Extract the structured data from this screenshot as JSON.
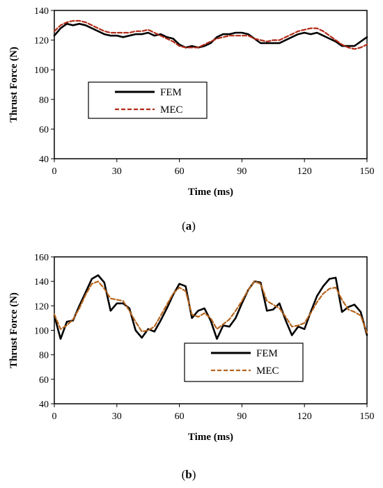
{
  "chart_data": [
    {
      "type": "line",
      "panel_label": "a",
      "xlabel": "Time (ms)",
      "ylabel": "Thrust Force  (N)",
      "xlim": [
        0,
        150
      ],
      "ylim": [
        40,
        140
      ],
      "xticks": [
        "0",
        "30",
        "60",
        "90",
        "120",
        "150"
      ],
      "yticks": [
        "40",
        "60",
        "80",
        "100",
        "120",
        "140"
      ],
      "legend_position": "center-left",
      "series": [
        {
          "name": "FEM",
          "color": "#000000",
          "style": "solid",
          "x": [
            0,
            3,
            6,
            9,
            12,
            15,
            18,
            21,
            24,
            27,
            30,
            33,
            36,
            39,
            42,
            45,
            48,
            51,
            54,
            57,
            60,
            63,
            66,
            69,
            72,
            75,
            78,
            81,
            84,
            87,
            90,
            93,
            96,
            99,
            102,
            105,
            108,
            111,
            114,
            117,
            120,
            123,
            126,
            129,
            132,
            135,
            138,
            141,
            144,
            147,
            150
          ],
          "values": [
            123,
            128,
            131,
            130,
            131,
            130,
            128,
            126,
            124,
            123,
            123,
            122,
            123,
            124,
            124,
            125,
            123,
            124,
            122,
            121,
            117,
            115,
            116,
            115,
            116,
            118,
            122,
            124,
            124,
            125,
            125,
            124,
            121,
            118,
            118,
            118,
            118,
            120,
            122,
            124,
            125,
            124,
            125,
            123,
            121,
            119,
            116,
            116,
            116,
            119,
            122
          ]
        },
        {
          "name": "MEC",
          "color": "#b22a17",
          "style": "dashed",
          "x": [
            0,
            3,
            6,
            9,
            12,
            15,
            18,
            21,
            24,
            27,
            30,
            33,
            36,
            39,
            42,
            45,
            48,
            51,
            54,
            57,
            60,
            63,
            66,
            69,
            72,
            75,
            78,
            81,
            84,
            87,
            90,
            93,
            96,
            99,
            102,
            105,
            108,
            111,
            114,
            117,
            120,
            123,
            126,
            129,
            132,
            135,
            138,
            141,
            144,
            147,
            150
          ],
          "values": [
            126,
            130,
            132,
            133,
            133,
            132,
            130,
            128,
            126,
            125,
            125,
            125,
            125,
            126,
            126,
            127,
            125,
            123,
            121,
            119,
            116,
            115,
            115,
            115,
            117,
            119,
            121,
            122,
            123,
            123,
            123,
            123,
            121,
            120,
            119,
            120,
            120,
            122,
            124,
            126,
            127,
            128,
            128,
            126,
            123,
            120,
            117,
            115,
            114,
            115,
            117
          ]
        }
      ]
    },
    {
      "type": "line",
      "panel_label": "b",
      "xlabel": "Time (ms)",
      "ylabel": "Thrust Force  (N)",
      "xlim": [
        0,
        150
      ],
      "ylim": [
        40,
        160
      ],
      "xticks": [
        "0",
        "30",
        "60",
        "90",
        "120",
        "150"
      ],
      "yticks": [
        "40",
        "60",
        "80",
        "100",
        "120",
        "140",
        "160"
      ],
      "legend_position": "bottom-right",
      "series": [
        {
          "name": "FEM",
          "color": "#000000",
          "style": "solid",
          "x": [
            0,
            3,
            6,
            9,
            12,
            15,
            18,
            21,
            24,
            27,
            30,
            33,
            36,
            39,
            42,
            45,
            48,
            51,
            54,
            57,
            60,
            63,
            66,
            69,
            72,
            75,
            78,
            81,
            84,
            87,
            90,
            93,
            96,
            99,
            102,
            105,
            108,
            111,
            114,
            117,
            120,
            123,
            126,
            129,
            132,
            135,
            138,
            141,
            144,
            147,
            150
          ],
          "values": [
            112,
            93,
            107,
            108,
            120,
            131,
            142,
            145,
            139,
            116,
            122,
            122,
            118,
            100,
            94,
            101,
            99,
            108,
            118,
            129,
            138,
            136,
            110,
            116,
            118,
            108,
            93,
            104,
            103,
            110,
            122,
            133,
            140,
            139,
            116,
            117,
            122,
            108,
            96,
            103,
            101,
            115,
            128,
            136,
            142,
            143,
            115,
            119,
            121,
            115,
            96
          ]
        },
        {
          "name": "MEC",
          "color": "#b5651d",
          "style": "dashed",
          "x": [
            0,
            3,
            6,
            9,
            12,
            15,
            18,
            21,
            24,
            27,
            30,
            33,
            36,
            39,
            42,
            45,
            48,
            51,
            54,
            57,
            60,
            63,
            66,
            69,
            72,
            75,
            78,
            81,
            84,
            87,
            90,
            93,
            96,
            99,
            102,
            105,
            108,
            111,
            114,
            117,
            120,
            123,
            126,
            129,
            132,
            135,
            138,
            141,
            144,
            147,
            150
          ],
          "values": [
            113,
            101,
            104,
            109,
            118,
            129,
            138,
            140,
            134,
            126,
            125,
            124,
            116,
            107,
            99,
            100,
            103,
            112,
            121,
            130,
            135,
            132,
            113,
            111,
            114,
            110,
            101,
            105,
            109,
            116,
            124,
            133,
            140,
            138,
            124,
            121,
            118,
            111,
            103,
            104,
            106,
            114,
            123,
            130,
            134,
            135,
            125,
            117,
            115,
            112,
            98
          ]
        }
      ]
    }
  ]
}
